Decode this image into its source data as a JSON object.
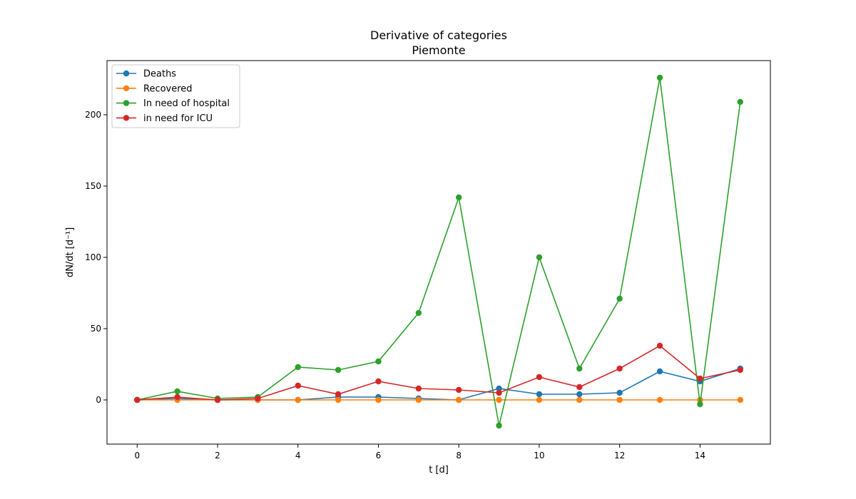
{
  "chart_data": {
    "type": "line",
    "title": "Derivative of categories",
    "subtitle": "Piemonte",
    "xlabel": "t [d]",
    "ylabel": "dN/dt [d⁻¹]",
    "xlim": [
      -0.75,
      15.75
    ],
    "ylim": [
      -31,
      238
    ],
    "x_ticks": [
      0,
      2,
      4,
      6,
      8,
      10,
      12,
      14
    ],
    "y_ticks": [
      0,
      50,
      100,
      150,
      200
    ],
    "grid": false,
    "legend_position": "top-left",
    "x": [
      0,
      1,
      2,
      3,
      4,
      5,
      6,
      7,
      8,
      9,
      10,
      11,
      12,
      13,
      14,
      15
    ],
    "series": [
      {
        "name": "Deaths",
        "color": "#1f77b4",
        "values": [
          0,
          1,
          0,
          0,
          0,
          2,
          2,
          1,
          0,
          8,
          4,
          4,
          5,
          20,
          13,
          22
        ]
      },
      {
        "name": "Recovered",
        "color": "#ff7f0e",
        "values": [
          0,
          0,
          0,
          0,
          0,
          0,
          0,
          0,
          0,
          0,
          0,
          0,
          0,
          0,
          0,
          0
        ]
      },
      {
        "name": "In need of hospital",
        "color": "#2ca02c",
        "values": [
          0,
          6,
          1,
          2,
          23,
          21,
          27,
          61,
          142,
          -18,
          100,
          22,
          71,
          226,
          -3,
          209
        ]
      },
      {
        "name": "in need for ICU",
        "color": "#d62728",
        "values": [
          0,
          2,
          0,
          1,
          10,
          4,
          13,
          8,
          7,
          5,
          16,
          9,
          22,
          38,
          15,
          21
        ]
      }
    ]
  }
}
